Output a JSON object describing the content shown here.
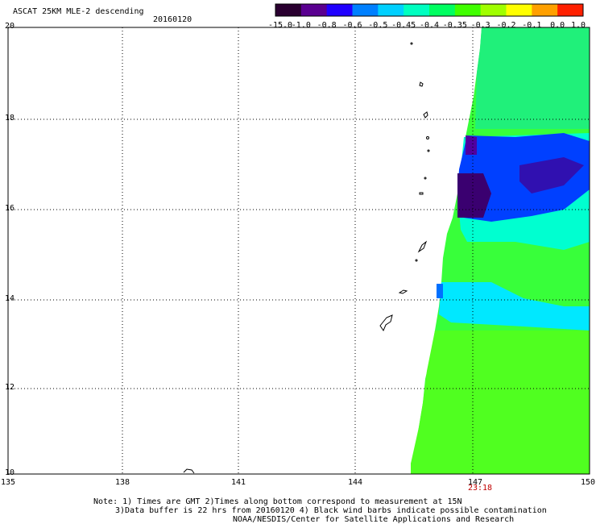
{
  "header": {
    "title": "ASCAT 25KM MLE-2 descending",
    "date": "20160120"
  },
  "colorbar": {
    "labels": [
      "-15.0",
      "-1.0",
      "-0.8",
      "-0.6",
      "-0.5",
      "-0.45",
      "-0.4",
      "-0.35",
      "-0.3",
      "-0.2",
      "-0.1",
      "0.0",
      "1.0"
    ],
    "colors": [
      "#2a0030",
      "#5a0090",
      "#2000ff",
      "#0080ff",
      "#00d0ff",
      "#00ffc0",
      "#00ff60",
      "#40ff00",
      "#a0ff00",
      "#ffff00",
      "#ffa000",
      "#ff2000"
    ]
  },
  "axes": {
    "lat_labels": [
      "20",
      "18",
      "16",
      "14",
      "12",
      "10"
    ],
    "lon_labels": [
      "135",
      "138",
      "141",
      "144",
      "147",
      "150"
    ],
    "time_label": "23:18"
  },
  "notes": {
    "line1": "Note: 1) Times are GMT 2)Times along bottom correspond to measurement at 15N",
    "line2": "3)Data buffer is 22 hrs from 20160120 4) Black wind barbs indicate possible contamination",
    "line3": "NOAA/NESDIS/Center for Satellite Applications and Research"
  }
}
